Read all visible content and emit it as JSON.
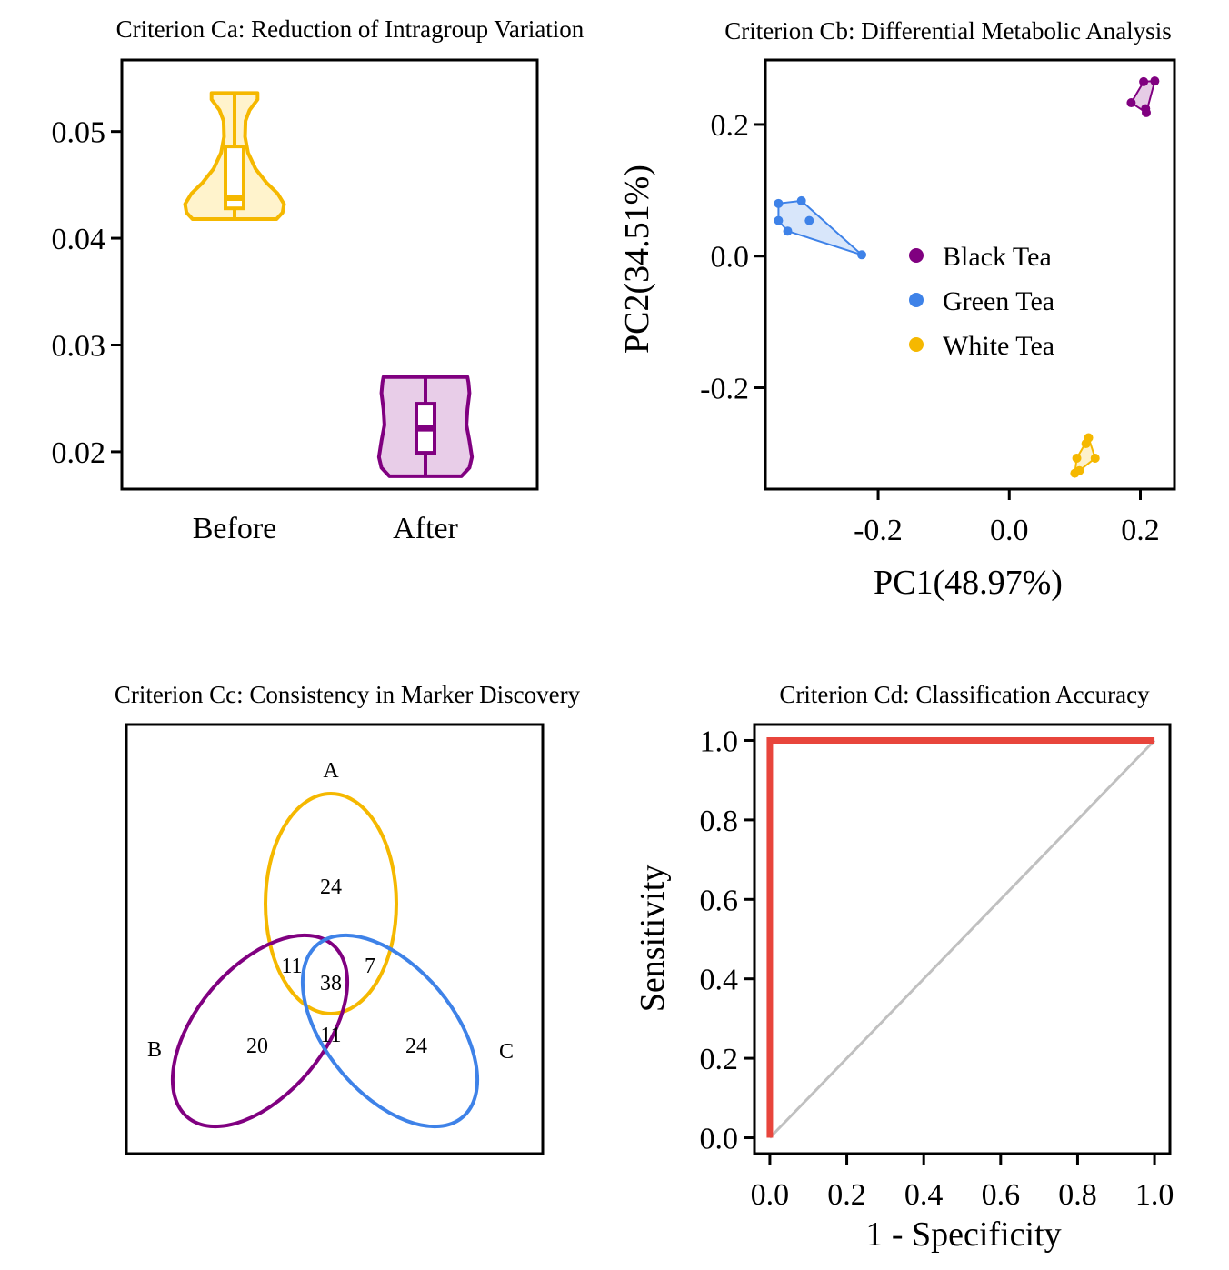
{
  "charts": {
    "ca": {
      "type": "violin",
      "title": "Criterion Ca: Reduction of Intragroup Variation",
      "categories": [
        "Before",
        "After"
      ],
      "ylim": [
        0.0165,
        0.0567
      ],
      "yticks": [
        {
          "value": 0.02,
          "label": "0.02"
        },
        {
          "value": 0.03,
          "label": "0.03"
        },
        {
          "value": 0.04,
          "label": "0.04"
        },
        {
          "value": 0.05,
          "label": "0.05"
        }
      ],
      "series": [
        {
          "name": "Before",
          "color": "#F5B800",
          "fill": "#FFF3CC",
          "min": 0.0418,
          "q1": 0.0428,
          "median": 0.0438,
          "q3": 0.0486,
          "max": 0.0536,
          "profile": [
            [
              0.0418,
              0.84
            ],
            [
              0.0424,
              0.96
            ],
            [
              0.0432,
              0.99
            ],
            [
              0.0442,
              0.86
            ],
            [
              0.0452,
              0.64
            ],
            [
              0.0465,
              0.42
            ],
            [
              0.048,
              0.27
            ],
            [
              0.0495,
              0.21
            ],
            [
              0.051,
              0.22
            ],
            [
              0.052,
              0.3
            ],
            [
              0.053,
              0.46
            ],
            [
              0.0536,
              0.46
            ]
          ]
        },
        {
          "name": "After",
          "color": "#800080",
          "fill": "#E8CDE8",
          "min": 0.0177,
          "q1": 0.0199,
          "median": 0.0222,
          "q3": 0.0245,
          "max": 0.027,
          "profile": [
            [
              0.0177,
              0.72
            ],
            [
              0.0185,
              0.88
            ],
            [
              0.0195,
              0.93
            ],
            [
              0.021,
              0.88
            ],
            [
              0.0225,
              0.82
            ],
            [
              0.024,
              0.84
            ],
            [
              0.0255,
              0.88
            ],
            [
              0.0265,
              0.86
            ],
            [
              0.027,
              0.84
            ]
          ]
        }
      ]
    },
    "cb": {
      "type": "scatter",
      "title": "Criterion Cb: Differential Metabolic Analysis",
      "xlabel": "PC1(48.97%)",
      "ylabel": "PC2(34.51%)",
      "xlim": [
        -0.372,
        0.252
      ],
      "ylim": [
        -0.354,
        0.298
      ],
      "xticks": [
        {
          "value": -0.2,
          "label": "-0.2"
        },
        {
          "value": 0.0,
          "label": "0.0"
        },
        {
          "value": 0.2,
          "label": "0.2"
        }
      ],
      "yticks": [
        {
          "value": -0.2,
          "label": "-0.2"
        },
        {
          "value": 0.0,
          "label": "0.0"
        },
        {
          "value": 0.2,
          "label": "0.2"
        }
      ],
      "legend": "center-right",
      "series": [
        {
          "name": "Black Tea",
          "color": "#800080",
          "points": [
            [
              0.186,
              0.233
            ],
            [
              0.205,
              0.265
            ],
            [
              0.208,
              0.224
            ],
            [
              0.209,
              0.218
            ],
            [
              0.222,
              0.266
            ]
          ]
        },
        {
          "name": "Green Tea",
          "color": "#3E82E8",
          "points": [
            [
              -0.352,
              0.08
            ],
            [
              -0.352,
              0.054
            ],
            [
              -0.338,
              0.038
            ],
            [
              -0.317,
              0.084
            ],
            [
              -0.305,
              0.054
            ],
            [
              -0.225,
              0.002
            ]
          ]
        },
        {
          "name": "White Tea",
          "color": "#F5B800",
          "points": [
            [
              0.1,
              -0.33
            ],
            [
              0.103,
              -0.307
            ],
            [
              0.107,
              -0.326
            ],
            [
              0.117,
              -0.285
            ],
            [
              0.121,
              -0.276
            ],
            [
              0.131,
              -0.307
            ]
          ]
        }
      ]
    },
    "cc": {
      "type": "venn",
      "title": "Criterion Cc: Consistency in Marker Discovery",
      "sets": [
        {
          "name": "A",
          "color": "#F5B800"
        },
        {
          "name": "B",
          "color": "#800080"
        },
        {
          "name": "C",
          "color": "#3E82E8"
        }
      ],
      "regions": [
        {
          "sets": "A",
          "value": "24"
        },
        {
          "sets": "A&B",
          "value": "11"
        },
        {
          "sets": "A&C",
          "value": "7"
        },
        {
          "sets": "A&B&C",
          "value": "38"
        },
        {
          "sets": "B",
          "value": "20"
        },
        {
          "sets": "B&C",
          "value": "11"
        },
        {
          "sets": "C",
          "value": "24"
        }
      ]
    },
    "cd": {
      "type": "line",
      "title": "Criterion Cd: Classification Accuracy",
      "xlabel": "1 - Specificity",
      "ylabel": "Sensitivity",
      "xlim": [
        -0.04,
        1.04
      ],
      "ylim": [
        -0.04,
        1.04
      ],
      "xticks": [
        {
          "value": 0.0,
          "label": "0.0"
        },
        {
          "value": 0.2,
          "label": "0.2"
        },
        {
          "value": 0.4,
          "label": "0.4"
        },
        {
          "value": 0.6,
          "label": "0.6"
        },
        {
          "value": 0.8,
          "label": "0.8"
        },
        {
          "value": 1.0,
          "label": "1.0"
        }
      ],
      "yticks": [
        {
          "value": 0.0,
          "label": "0.0"
        },
        {
          "value": 0.2,
          "label": "0.2"
        },
        {
          "value": 0.4,
          "label": "0.4"
        },
        {
          "value": 0.6,
          "label": "0.6"
        },
        {
          "value": 0.8,
          "label": "0.8"
        },
        {
          "value": 1.0,
          "label": "1.0"
        }
      ],
      "series": [
        {
          "color": "#E8453C",
          "points": [
            [
              0,
              0
            ],
            [
              0,
              1
            ],
            [
              1,
              1
            ]
          ]
        },
        {
          "color": "#C0C0C0",
          "points": [
            [
              0,
              0
            ],
            [
              1,
              1
            ]
          ]
        }
      ]
    }
  }
}
